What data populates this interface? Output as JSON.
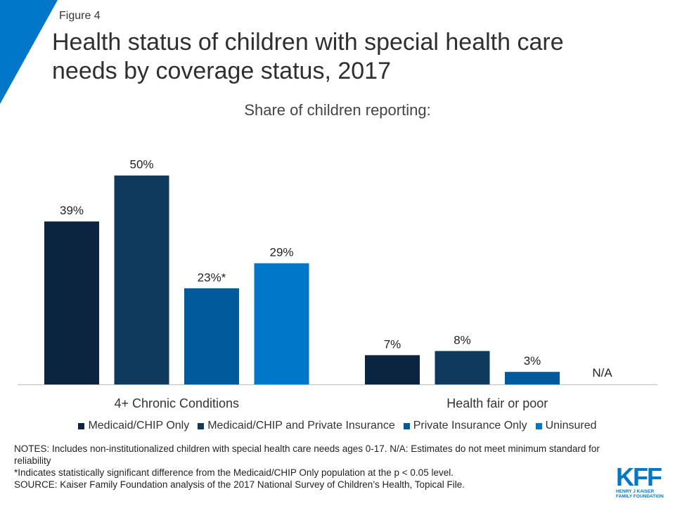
{
  "figure_label": "Figure 4",
  "chart_data": {
    "type": "bar",
    "title": "Health status of children with special health care needs by coverage status, 2017",
    "subtitle": "Share of children reporting:",
    "categories": [
      "4+ Chronic Conditions",
      "Health fair or poor"
    ],
    "series": [
      {
        "name": "Medicaid/CHIP Only",
        "color": "#0b2440",
        "values": [
          39,
          7
        ],
        "labels": [
          "39%",
          "7%"
        ]
      },
      {
        "name": "Medicaid/CHIP and Private Insurance",
        "color": "#10395e",
        "values": [
          50,
          8
        ],
        "labels": [
          "50%",
          "8%"
        ]
      },
      {
        "name": "Private Insurance Only",
        "color": "#005a9c",
        "values": [
          23,
          3
        ],
        "labels": [
          "23%*",
          "3%"
        ]
      },
      {
        "name": "Uninsured",
        "color": "#0077c8",
        "values": [
          29,
          null
        ],
        "labels": [
          "29%",
          "N/A"
        ]
      }
    ],
    "ylim": [
      0,
      55
    ],
    "grid": false,
    "xlabel": "",
    "ylabel": "",
    "legend_position": "bottom"
  },
  "notes": [
    "NOTES: Includes non-institutionalized  children with special health care needs ages 0-17.  N/A: Estimates do not meet minimum standard for reliability",
    "*Indicates statistically significant difference from the Medicaid/CHIP Only population at the p < 0.05 level.",
    "SOURCE: Kaiser Family Foundation analysis of the 2017 National Survey  of Children’s Health, Topical File."
  ],
  "logo": {
    "mark": "KFF",
    "subtitle": "HENRY J KAISER FAMILY FOUNDATION"
  },
  "colors": {
    "accent": "#0077c8"
  }
}
